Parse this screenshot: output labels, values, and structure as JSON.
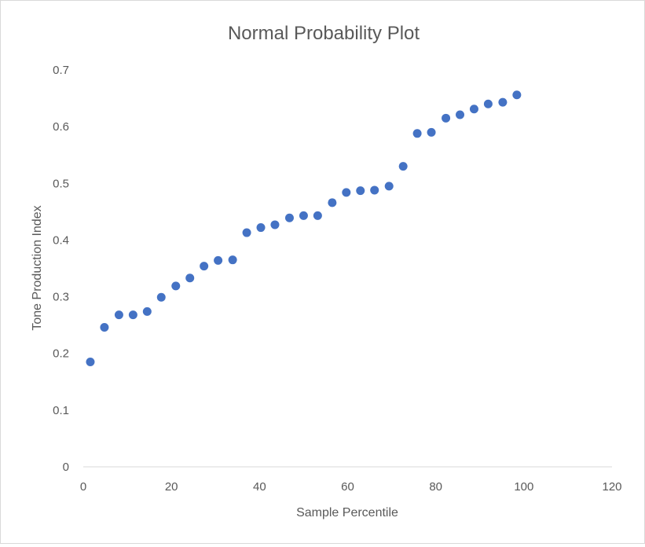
{
  "chart_data": {
    "type": "scatter",
    "title": "Normal Probability Plot",
    "xlabel": "Sample Percentile",
    "ylabel": "Tone Production Index",
    "xlim": [
      0,
      120
    ],
    "ylim": [
      0,
      0.7
    ],
    "x_ticks": [
      "0",
      "20",
      "40",
      "60",
      "80",
      "100",
      "120"
    ],
    "y_ticks": [
      "0",
      "0.1",
      "0.2",
      "0.3",
      "0.4",
      "0.5",
      "0.6",
      "0.7"
    ],
    "grid": false,
    "marker_color": "#4472C4",
    "points": [
      {
        "x": 1.6,
        "y": 0.185
      },
      {
        "x": 4.8,
        "y": 0.246
      },
      {
        "x": 8.1,
        "y": 0.268
      },
      {
        "x": 11.3,
        "y": 0.268
      },
      {
        "x": 14.5,
        "y": 0.274
      },
      {
        "x": 17.7,
        "y": 0.299
      },
      {
        "x": 21.0,
        "y": 0.319
      },
      {
        "x": 24.2,
        "y": 0.333
      },
      {
        "x": 27.4,
        "y": 0.354
      },
      {
        "x": 30.6,
        "y": 0.364
      },
      {
        "x": 33.9,
        "y": 0.365
      },
      {
        "x": 37.1,
        "y": 0.413
      },
      {
        "x": 40.3,
        "y": 0.422
      },
      {
        "x": 43.5,
        "y": 0.427
      },
      {
        "x": 46.8,
        "y": 0.439
      },
      {
        "x": 50.0,
        "y": 0.443
      },
      {
        "x": 53.2,
        "y": 0.443
      },
      {
        "x": 56.5,
        "y": 0.466
      },
      {
        "x": 59.7,
        "y": 0.484
      },
      {
        "x": 62.9,
        "y": 0.487
      },
      {
        "x": 66.1,
        "y": 0.488
      },
      {
        "x": 69.4,
        "y": 0.495
      },
      {
        "x": 72.6,
        "y": 0.53
      },
      {
        "x": 75.8,
        "y": 0.588
      },
      {
        "x": 79.0,
        "y": 0.59
      },
      {
        "x": 82.3,
        "y": 0.615
      },
      {
        "x": 85.5,
        "y": 0.621
      },
      {
        "x": 88.7,
        "y": 0.631
      },
      {
        "x": 91.9,
        "y": 0.64
      },
      {
        "x": 95.2,
        "y": 0.643
      },
      {
        "x": 98.4,
        "y": 0.656
      }
    ]
  }
}
